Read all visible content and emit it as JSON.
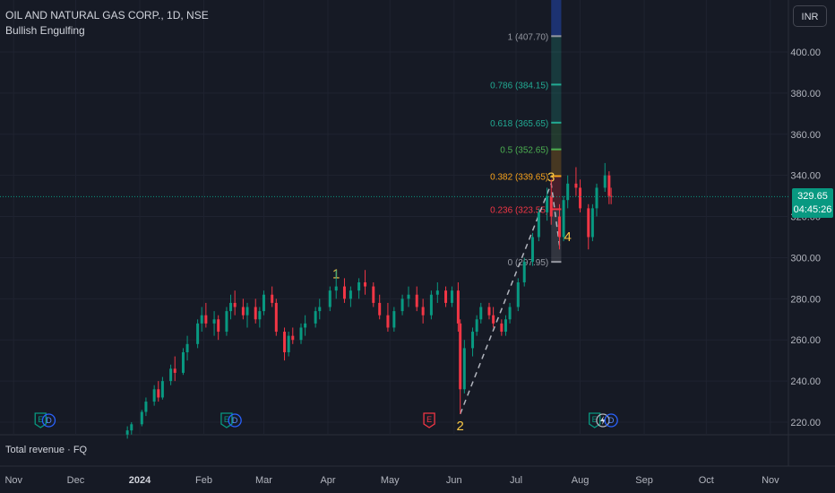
{
  "header": {
    "symbol_line": "OIL AND NATURAL GAS CORP., 1D, NSE",
    "indicator": "Bullish Engulfing"
  },
  "currency": "INR",
  "last_price": {
    "value": "329.65",
    "countdown": "04:45:26",
    "color": "#089981"
  },
  "bottom_pane": {
    "label": "Total revenue · FQ"
  },
  "colors": {
    "up": "#089981",
    "down": "#f23645",
    "background": "#161a25",
    "wave": "#f9c846"
  },
  "chart_data": {
    "type": "candlestick",
    "ylim": [
      215,
      420
    ],
    "y_ticks": [
      "400.00",
      "380.00",
      "360.00",
      "340.00",
      "320.00",
      "300.00",
      "280.00",
      "260.00",
      "240.00",
      "220.00"
    ],
    "x_ticks": [
      "Nov",
      "Dec",
      "2024",
      "Feb",
      "Mar",
      "Apr",
      "May",
      "Jun",
      "Jul",
      "Aug",
      "Sep",
      "Oct",
      "Nov"
    ],
    "fib_levels": [
      {
        "label": "1 (407.70)",
        "value": 407.7,
        "color": "#9598a1"
      },
      {
        "label": "0.786 (384.15)",
        "value": 384.15,
        "color": "#22ab94"
      },
      {
        "label": "0.618 (365.65)",
        "value": 365.65,
        "color": "#22ab94"
      },
      {
        "label": "0.5 (352.65)",
        "value": 352.65,
        "color": "#4caf50"
      },
      {
        "label": "0.382 (339.65)",
        "value": 339.65,
        "color": "#f7a21b"
      },
      {
        "label": "0.236 (323.55)",
        "value": 323.55,
        "color": "#f23645"
      },
      {
        "label": "0 (297.95)",
        "value": 297.95,
        "color": "#9598a1"
      }
    ],
    "wave_labels": [
      {
        "label": "1",
        "date": "2024-04-05",
        "value": 290
      },
      {
        "label": "2",
        "date": "2024-06-04",
        "value": 216
      },
      {
        "label": "3",
        "date": "2024-07-18",
        "value": 337
      },
      {
        "label": "4",
        "date": "2024-07-26",
        "value": 308
      }
    ],
    "event_markers": [
      {
        "type": "E",
        "date": "2023-11-14"
      },
      {
        "type": "D",
        "date": "2023-11-18"
      },
      {
        "type": "E",
        "date": "2024-02-12"
      },
      {
        "type": "D",
        "date": "2024-02-16"
      },
      {
        "type": "E",
        "date": "2024-05-20"
      },
      {
        "type": "E",
        "date": "2024-08-08"
      },
      {
        "type": "S",
        "date": "2024-08-12"
      },
      {
        "type": "D",
        "date": "2024-08-16"
      }
    ],
    "candles": [
      [
        "2023-12-26",
        214,
        218,
        212,
        216
      ],
      [
        "2023-12-28",
        216,
        220,
        214,
        219
      ],
      [
        "2024-01-02",
        219,
        226,
        218,
        225
      ],
      [
        "2024-01-04",
        225,
        232,
        223,
        230
      ],
      [
        "2024-01-08",
        230,
        238,
        228,
        236
      ],
      [
        "2024-01-10",
        236,
        240,
        230,
        232
      ],
      [
        "2024-01-12",
        232,
        242,
        231,
        240
      ],
      [
        "2024-01-16",
        240,
        248,
        238,
        246
      ],
      [
        "2024-01-18",
        246,
        252,
        240,
        244
      ],
      [
        "2024-01-22",
        244,
        256,
        243,
        254
      ],
      [
        "2024-01-24",
        254,
        262,
        250,
        258
      ],
      [
        "2024-01-29",
        258,
        270,
        256,
        268
      ],
      [
        "2024-01-31",
        268,
        276,
        264,
        272
      ],
      [
        "2024-02-02",
        272,
        278,
        266,
        268
      ],
      [
        "2024-02-06",
        268,
        274,
        262,
        270
      ],
      [
        "2024-02-08",
        270,
        272,
        260,
        264
      ],
      [
        "2024-02-12",
        264,
        276,
        262,
        274
      ],
      [
        "2024-02-14",
        274,
        282,
        270,
        278
      ],
      [
        "2024-02-16",
        278,
        284,
        272,
        276
      ],
      [
        "2024-02-20",
        276,
        280,
        270,
        272
      ],
      [
        "2024-02-22",
        272,
        278,
        266,
        276
      ],
      [
        "2024-02-26",
        276,
        280,
        268,
        270
      ],
      [
        "2024-02-28",
        270,
        276,
        266,
        274
      ],
      [
        "2024-03-01",
        274,
        284,
        272,
        282
      ],
      [
        "2024-03-05",
        282,
        286,
        276,
        278
      ],
      [
        "2024-03-07",
        278,
        280,
        262,
        264
      ],
      [
        "2024-03-11",
        264,
        266,
        250,
        254
      ],
      [
        "2024-03-13",
        254,
        264,
        252,
        262
      ],
      [
        "2024-03-15",
        262,
        266,
        258,
        260
      ],
      [
        "2024-03-19",
        260,
        268,
        258,
        266
      ],
      [
        "2024-03-21",
        266,
        272,
        262,
        268
      ],
      [
        "2024-03-26",
        268,
        276,
        266,
        274
      ],
      [
        "2024-03-28",
        274,
        280,
        270,
        276
      ],
      [
        "2024-04-02",
        276,
        286,
        274,
        284
      ],
      [
        "2024-04-05",
        284,
        294,
        280,
        286
      ],
      [
        "2024-04-09",
        286,
        290,
        278,
        280
      ],
      [
        "2024-04-12",
        280,
        286,
        276,
        284
      ],
      [
        "2024-04-16",
        284,
        290,
        280,
        288
      ],
      [
        "2024-04-19",
        288,
        294,
        282,
        286
      ],
      [
        "2024-04-23",
        286,
        288,
        276,
        278
      ],
      [
        "2024-04-26",
        278,
        282,
        270,
        272
      ],
      [
        "2024-04-30",
        272,
        278,
        264,
        266
      ],
      [
        "2024-05-03",
        266,
        276,
        264,
        274
      ],
      [
        "2024-05-07",
        274,
        282,
        272,
        280
      ],
      [
        "2024-05-10",
        280,
        286,
        276,
        282
      ],
      [
        "2024-05-14",
        282,
        286,
        274,
        276
      ],
      [
        "2024-05-17",
        276,
        280,
        268,
        272
      ],
      [
        "2024-05-21",
        272,
        284,
        270,
        282
      ],
      [
        "2024-05-24",
        282,
        288,
        278,
        284
      ],
      [
        "2024-05-28",
        284,
        286,
        276,
        278
      ],
      [
        "2024-05-31",
        278,
        286,
        276,
        284
      ],
      [
        "2024-06-03",
        284,
        288,
        264,
        268
      ],
      [
        "2024-06-04",
        268,
        270,
        224,
        236
      ],
      [
        "2024-06-06",
        236,
        260,
        234,
        256
      ],
      [
        "2024-06-10",
        256,
        266,
        252,
        264
      ],
      [
        "2024-06-12",
        264,
        272,
        262,
        270
      ],
      [
        "2024-06-14",
        270,
        278,
        268,
        276
      ],
      [
        "2024-06-18",
        276,
        278,
        270,
        272
      ],
      [
        "2024-06-20",
        272,
        276,
        266,
        268
      ],
      [
        "2024-06-24",
        268,
        270,
        262,
        264
      ],
      [
        "2024-06-26",
        264,
        272,
        262,
        270
      ],
      [
        "2024-06-28",
        270,
        278,
        268,
        276
      ],
      [
        "2024-07-02",
        276,
        290,
        274,
        288
      ],
      [
        "2024-07-05",
        288,
        300,
        286,
        298
      ],
      [
        "2024-07-09",
        298,
        312,
        296,
        310
      ],
      [
        "2024-07-12",
        310,
        324,
        308,
        322
      ],
      [
        "2024-07-16",
        322,
        334,
        318,
        330
      ],
      [
        "2024-07-18",
        330,
        338,
        316,
        320
      ],
      [
        "2024-07-22",
        320,
        326,
        304,
        310
      ],
      [
        "2024-07-24",
        310,
        330,
        308,
        328
      ],
      [
        "2024-07-26",
        328,
        340,
        324,
        336
      ],
      [
        "2024-07-30",
        336,
        344,
        330,
        334
      ],
      [
        "2024-08-01",
        334,
        338,
        322,
        324
      ],
      [
        "2024-08-05",
        324,
        326,
        304,
        310
      ],
      [
        "2024-08-07",
        310,
        326,
        308,
        324
      ],
      [
        "2024-08-09",
        324,
        336,
        320,
        334
      ],
      [
        "2024-08-13",
        334,
        346,
        332,
        340
      ],
      [
        "2024-08-15",
        340,
        342,
        326,
        330
      ],
      [
        "2024-08-16",
        330,
        334,
        326,
        329.65
      ]
    ]
  }
}
